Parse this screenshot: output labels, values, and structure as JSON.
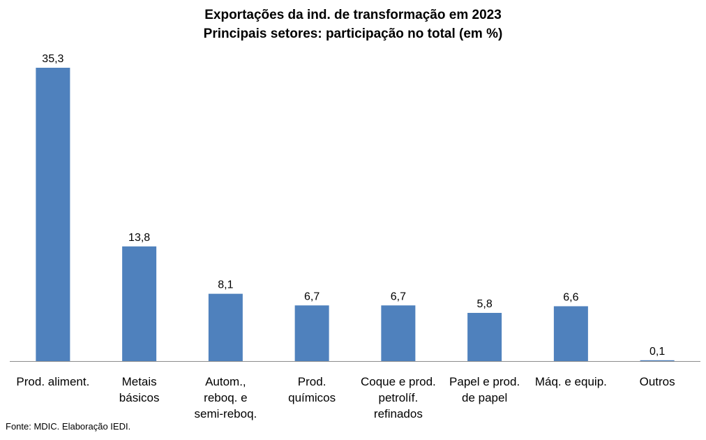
{
  "chart_data": {
    "type": "bar",
    "title": "Exportações da ind. de transformação em 2023",
    "subtitle": "Principais setores: participação no total (em %)",
    "categories": [
      "Prod. aliment.",
      "Metais básicos",
      "Autom., reboq. e semi-reboq.",
      "Prod. químicos",
      "Coque e prod. petrolíf. refinados",
      "Papel e prod. de papel",
      "Máq. e equip.",
      "Outros"
    ],
    "category_lines": [
      [
        "Prod. aliment."
      ],
      [
        "Metais",
        "básicos"
      ],
      [
        "Autom.,",
        "reboq. e",
        "semi-reboq."
      ],
      [
        "Prod.",
        "químicos"
      ],
      [
        "Coque e prod.",
        "petrolíf.",
        "refinados"
      ],
      [
        "Papel e prod.",
        "de papel"
      ],
      [
        "Máq. e equip."
      ],
      [
        "Outros"
      ]
    ],
    "values": [
      35.3,
      13.8,
      8.1,
      6.7,
      6.7,
      5.8,
      6.6,
      0.1
    ],
    "value_labels": [
      "35,3",
      "13,8",
      "8,1",
      "6,7",
      "6,7",
      "5,8",
      "6,6",
      "0,1"
    ],
    "xlabel": "",
    "ylabel": "",
    "ylim": [
      0,
      35.3
    ],
    "grid": false,
    "legend": "none",
    "bar_color": "#4F81BD",
    "source": "Fonte: MDIC. Elaboração IEDI."
  }
}
